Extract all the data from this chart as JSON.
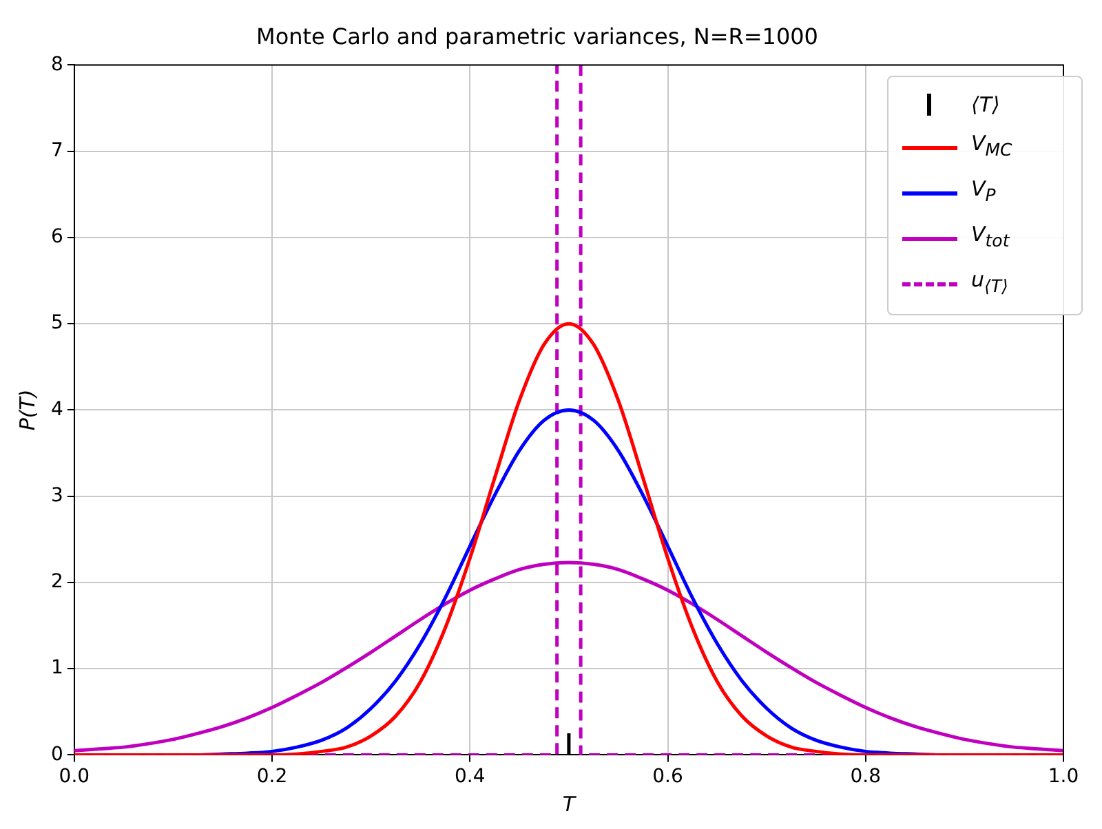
{
  "chart_data": {
    "type": "line",
    "title": "Monte Carlo and parametric variances, N=R=1000",
    "xlabel": "T",
    "ylabel": "P(T)",
    "x": [
      0,
      0.025,
      0.05,
      0.075,
      0.1,
      0.125,
      0.15,
      0.175,
      0.2,
      0.225,
      0.25,
      0.275,
      0.3,
      0.325,
      0.35,
      0.375,
      0.4,
      0.425,
      0.45,
      0.475,
      0.5,
      0.525,
      0.55,
      0.575,
      0.6,
      0.625,
      0.65,
      0.675,
      0.7,
      0.725,
      0.75,
      0.775,
      0.8,
      0.825,
      0.85,
      0.875,
      0.9,
      0.925,
      0.95,
      0.975,
      1
    ],
    "series": [
      {
        "name": "⟨T⟩",
        "color": "#000000",
        "x": [
          0.5,
          0.5
        ],
        "values": [
          0,
          0.25
        ]
      },
      {
        "name": "V$_{MC}$",
        "color": "#ff0000",
        "values": [
          0,
          0,
          0,
          0,
          0,
          0,
          0,
          0,
          0,
          0.01,
          0.04,
          0.09,
          0.22,
          0.45,
          0.85,
          1.47,
          2.28,
          3.21,
          4.11,
          4.76,
          5,
          4.76,
          4.11,
          3.21,
          2.28,
          1.47,
          0.85,
          0.45,
          0.22,
          0.09,
          0.04,
          0.01,
          0,
          0,
          0,
          0,
          0,
          0,
          0,
          0,
          0
        ]
      },
      {
        "name": "V$_{P}$",
        "color": "#0000ff",
        "values": [
          null,
          null,
          null,
          null,
          0,
          0,
          0.01,
          0.02,
          0.04,
          0.09,
          0.17,
          0.31,
          0.54,
          0.86,
          1.29,
          1.82,
          2.42,
          3.01,
          3.53,
          3.88,
          4,
          3.88,
          3.53,
          3.01,
          2.42,
          1.82,
          1.29,
          0.86,
          0.54,
          0.31,
          0.17,
          0.09,
          0.04,
          0.02,
          0.01,
          0,
          0,
          null,
          null,
          null,
          null
        ]
      },
      {
        "name": "V$_{tot}$",
        "color": "#bf00bf",
        "values": [
          0.05,
          0.07,
          0.09,
          0.13,
          0.18,
          0.25,
          0.33,
          0.43,
          0.55,
          0.69,
          0.84,
          1.01,
          1.19,
          1.38,
          1.57,
          1.75,
          1.91,
          2.04,
          2.15,
          2.21,
          2.23,
          2.21,
          2.15,
          2.04,
          1.91,
          1.75,
          1.57,
          1.38,
          1.19,
          1.01,
          0.84,
          0.69,
          0.55,
          0.43,
          0.33,
          0.25,
          0.18,
          0.13,
          0.09,
          0.07,
          0.05
        ]
      },
      {
        "name": "u$_{⟨T⟩}$",
        "color": "#bf00bf",
        "line_style": "dashed",
        "x": [
          0,
          0.488,
          0.488,
          0.5,
          0.512,
          0.512,
          1
        ],
        "values": [
          0,
          0,
          8,
          null,
          8,
          0,
          0
        ]
      }
    ],
    "xlim": [
      0,
      1
    ],
    "xticks": [
      {
        "value": 0,
        "label": "0.0"
      },
      {
        "value": 0.2,
        "label": "0.2"
      },
      {
        "value": 0.4,
        "label": "0.4"
      },
      {
        "value": 0.6,
        "label": "0.6"
      },
      {
        "value": 0.8,
        "label": "0.8"
      },
      {
        "value": 1,
        "label": "1.0"
      }
    ],
    "ylim": [
      0,
      8
    ],
    "yticks": [
      0,
      1,
      2,
      3,
      4,
      5,
      6,
      7,
      8
    ],
    "grid": true,
    "legend": "top right"
  }
}
